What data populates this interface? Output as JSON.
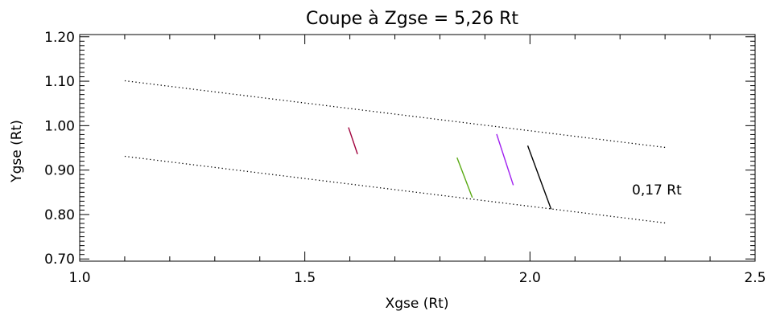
{
  "chart_data": {
    "type": "line",
    "title": "Coupe à Zgse = 5,26 Rt",
    "xlabel": "Xgse (Rt)",
    "ylabel": "Ygse (Rt)",
    "xlim": [
      1.0,
      2.5
    ],
    "ylim": [
      0.695,
      1.205
    ],
    "xticks": [
      1.0,
      1.5,
      2.0,
      2.5
    ],
    "xtick_labels": [
      "1.0",
      "1.5",
      "2.0",
      "2.5"
    ],
    "yticks": [
      0.7,
      0.8,
      0.9,
      1.0,
      1.1,
      1.2
    ],
    "ytick_labels": [
      "0.70",
      "0.80",
      "0.90",
      "1.00",
      "1.10",
      "1.20"
    ],
    "grid": false,
    "annotation": "0,17 Rt",
    "boundaries": [
      {
        "style": "dotted",
        "color": "#000000",
        "x": [
          1.1,
          2.3
        ],
        "y": [
          1.101,
          0.951
        ]
      },
      {
        "style": "dotted",
        "color": "#000000",
        "x": [
          1.1,
          2.3
        ],
        "y": [
          0.931,
          0.781
        ]
      }
    ],
    "segments": [
      {
        "color": "#a0003c",
        "x": [
          1.597,
          1.617
        ],
        "y": [
          0.996,
          0.936
        ]
      },
      {
        "color": "#5aaa14",
        "x": [
          1.838,
          1.872
        ],
        "y": [
          0.928,
          0.838
        ]
      },
      {
        "color": "#a020f0",
        "x": [
          1.926,
          1.963
        ],
        "y": [
          0.981,
          0.866
        ]
      },
      {
        "color": "#000000",
        "x": [
          1.995,
          2.047
        ],
        "y": [
          0.955,
          0.812
        ]
      }
    ]
  }
}
